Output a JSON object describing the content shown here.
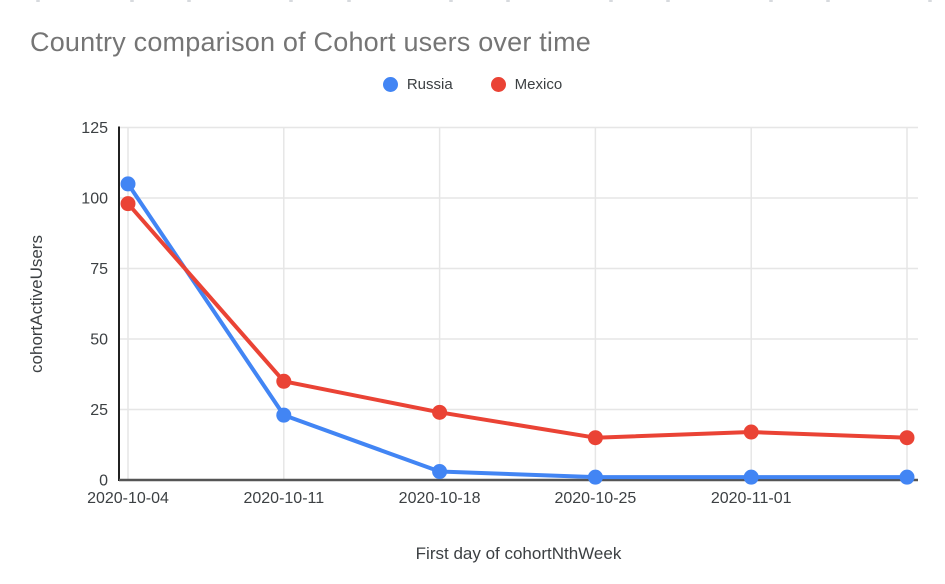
{
  "title": "Country comparison of Cohort users over time",
  "legend": {
    "items": [
      {
        "label": "Russia",
        "color": "#4285F4"
      },
      {
        "label": "Mexico",
        "color": "#EA4335"
      }
    ]
  },
  "chart_data": {
    "type": "line",
    "title": "Country comparison of Cohort users over time",
    "xlabel": "First day of cohortNthWeek",
    "ylabel": "cohortActiveUsers",
    "x_tick_labels": [
      "2020-10-04",
      "2020-10-11",
      "2020-10-18",
      "2020-10-25",
      "2020-11-01",
      ""
    ],
    "y_ticks": [
      0,
      25,
      50,
      75,
      100,
      125
    ],
    "ylim": [
      0,
      125
    ],
    "grid": true,
    "legend_position": "top",
    "series": [
      {
        "name": "Russia",
        "color": "#4285F4",
        "values": [
          105,
          23,
          3,
          1,
          1,
          1
        ]
      },
      {
        "name": "Mexico",
        "color": "#EA4335",
        "values": [
          98,
          35,
          24,
          15,
          17,
          15
        ]
      }
    ]
  },
  "colors": {
    "background": "#ffffff",
    "title_text": "#757575",
    "axis_text": "#3c4043",
    "gridline": "#e6e6e6",
    "y_axis_line": "#212121",
    "x_axis_line": "#555555"
  }
}
